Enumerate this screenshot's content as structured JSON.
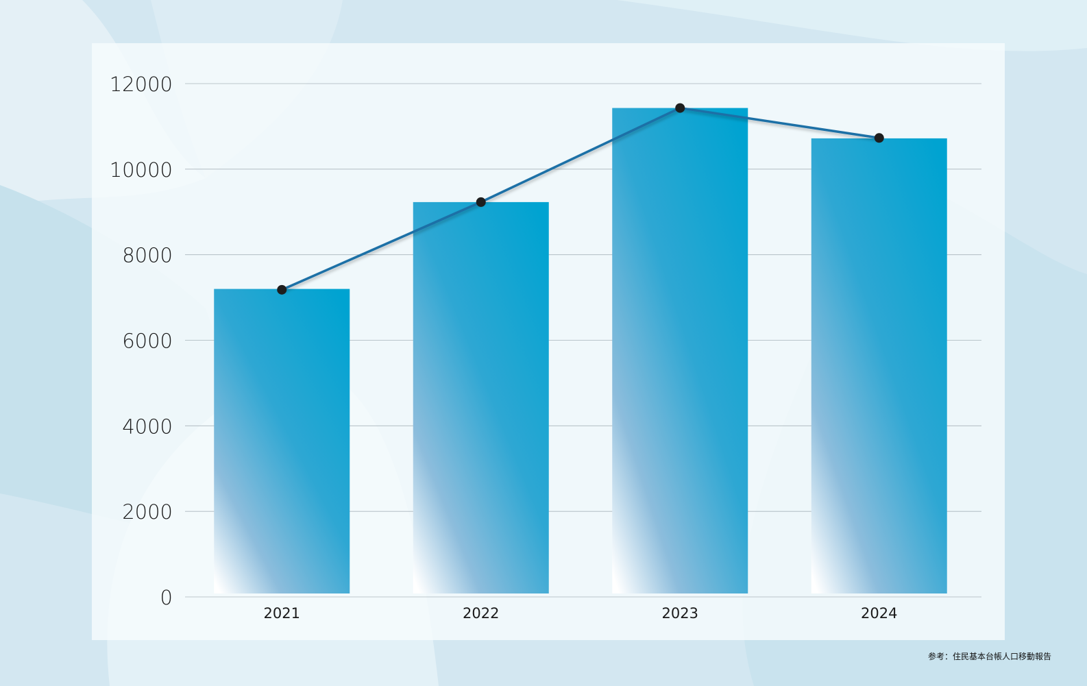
{
  "chart_data": {
    "type": "bar",
    "categories": [
      "2021",
      "2022",
      "2023",
      "2024"
    ],
    "series": [
      {
        "type": "bar",
        "values": [
          7200,
          9230,
          11430,
          10720
        ]
      },
      {
        "type": "line",
        "values": [
          7180,
          9230,
          11430,
          10730
        ]
      }
    ],
    "ylim": [
      0,
      12000
    ],
    "yticks": [
      "0",
      "2000",
      "4000",
      "6000",
      "8000",
      "10000",
      "12000"
    ],
    "grid": true,
    "legend": "none"
  },
  "colors": {
    "bar_top": "#00a3d1",
    "bar_bottom": "#ffffff",
    "line": "#1a6fa6",
    "marker": "#1e1e1e",
    "grid": "#7a8891",
    "panel": "#f7fbfd"
  },
  "footer": {
    "source": "参考：住民基本台帳人口移動報告"
  }
}
